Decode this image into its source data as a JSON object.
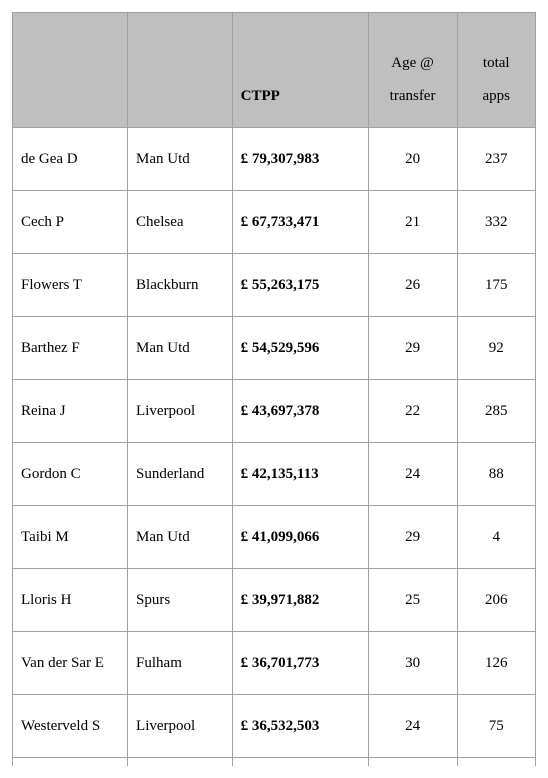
{
  "table": {
    "columns": [
      {
        "key": "name",
        "label": "",
        "align": "left",
        "bold": false
      },
      {
        "key": "club",
        "label": "",
        "align": "left",
        "bold": false
      },
      {
        "key": "ctpp",
        "label": "CTPP",
        "align": "left",
        "bold": true
      },
      {
        "key": "age",
        "label": "Age @ transfer",
        "align": "center",
        "bold": false
      },
      {
        "key": "apps",
        "label": "total apps",
        "align": "center",
        "bold": false
      }
    ],
    "header_background": "#bfbfbf",
    "border_color": "#a0a0a0",
    "font_family": "Georgia serif",
    "cell_font_size": 15,
    "rows": [
      {
        "name": "de Gea D",
        "club": "Man Utd",
        "ctpp": "£ 79,307,983",
        "age": "20",
        "apps": "237"
      },
      {
        "name": "Cech P",
        "club": "Chelsea",
        "ctpp": "£ 67,733,471",
        "age": "21",
        "apps": "332"
      },
      {
        "name": "Flowers T",
        "club": "Blackburn",
        "ctpp": "£ 55,263,175",
        "age": "26",
        "apps": "175"
      },
      {
        "name": "Barthez F",
        "club": "Man Utd",
        "ctpp": "£ 54,529,596",
        "age": "29",
        "apps": "92"
      },
      {
        "name": "Reina J",
        "club": "Liverpool",
        "ctpp": "£ 43,697,378",
        "age": "22",
        "apps": "285"
      },
      {
        "name": "Gordon C",
        "club": "Sunderland",
        "ctpp": "£ 42,135,113",
        "age": "24",
        "apps": "88"
      },
      {
        "name": "Taibi M",
        "club": "Man Utd",
        "ctpp": "£ 41,099,066",
        "age": "29",
        "apps": "4"
      },
      {
        "name": "Lloris H",
        "club": "Spurs",
        "ctpp": "£ 39,971,882",
        "age": "25",
        "apps": "206"
      },
      {
        "name": "Van der Sar E",
        "club": "Fulham",
        "ctpp": "£ 36,701,773",
        "age": "30",
        "apps": "126"
      },
      {
        "name": "Westerveld S",
        "club": "Liverpool",
        "ctpp": "£ 36,532,503",
        "age": "24",
        "apps": "75"
      }
    ]
  }
}
